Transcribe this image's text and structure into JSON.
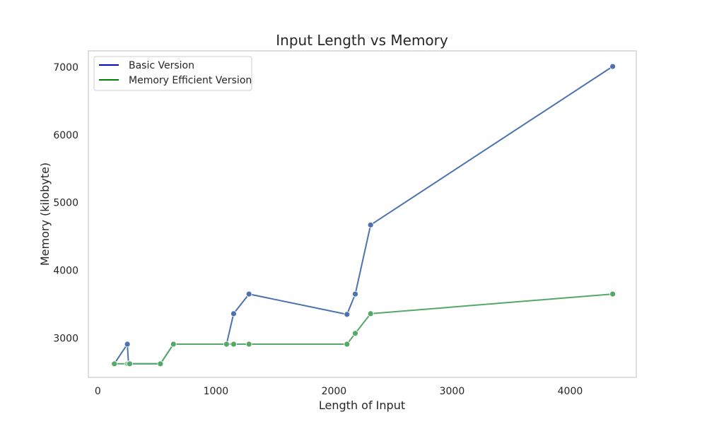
{
  "chart_data": {
    "type": "line",
    "title": "Input Length vs Memory",
    "xlabel": "Length of Input",
    "ylabel": "Memory (kilobyte)",
    "xlim": [
      -80,
      4560
    ],
    "ylim": [
      2420,
      7240
    ],
    "xticks": [
      0,
      1000,
      2000,
      3000,
      4000
    ],
    "yticks": [
      3000,
      4000,
      5000,
      6000,
      7000
    ],
    "grid": false,
    "legend": {
      "position": "upper-left",
      "entries": [
        {
          "label": "Basic Version",
          "color": "#0000ff"
        },
        {
          "label": "Memory Efficient Version",
          "color": "#008000"
        }
      ]
    },
    "series": [
      {
        "name": "Basic Version",
        "color": "#4c72b0",
        "points": [
          [
            140,
            2620
          ],
          [
            250,
            2910
          ],
          [
            260,
            2620
          ],
          [
            270,
            2620
          ],
          [
            530,
            2620
          ],
          [
            640,
            2910
          ],
          [
            1090,
            2910
          ],
          [
            1150,
            3360
          ],
          [
            1280,
            3650
          ],
          [
            2110,
            3350
          ],
          [
            2180,
            3650
          ],
          [
            2310,
            4670
          ],
          [
            4360,
            7010
          ]
        ]
      },
      {
        "name": "Memory Efficient Version",
        "color": "#55a868",
        "points": [
          [
            140,
            2620
          ],
          [
            250,
            2620
          ],
          [
            260,
            2620
          ],
          [
            270,
            2620
          ],
          [
            530,
            2620
          ],
          [
            640,
            2910
          ],
          [
            1090,
            2910
          ],
          [
            1150,
            2910
          ],
          [
            1280,
            2910
          ],
          [
            2110,
            2910
          ],
          [
            2180,
            3070
          ],
          [
            2310,
            3360
          ],
          [
            4360,
            3650
          ]
        ]
      }
    ]
  }
}
